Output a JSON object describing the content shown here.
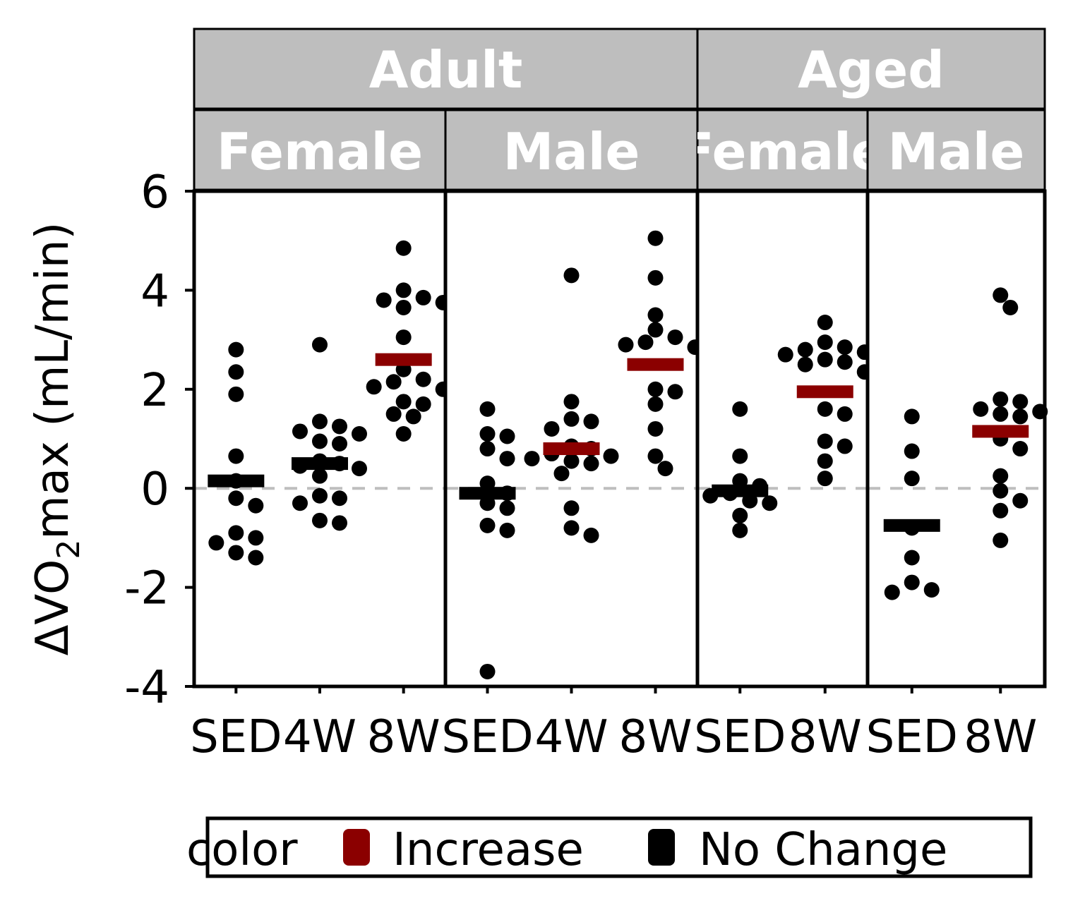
{
  "chart_data": {
    "type": "scatter",
    "ylabel": "ΔVO₂max (mL/min)",
    "ylabel_parts": {
      "pre": "ΔVO",
      "sub": "2",
      "post": "max (mL/min)"
    },
    "ylim": [
      -4,
      6
    ],
    "yticks": [
      "6",
      "4",
      "2",
      "0",
      "-2",
      "-4"
    ],
    "reference_line": 0,
    "colors": {
      "Increase": "#8b0000",
      "No Change": "#000000",
      "strip": "#bebebe",
      "refline": "#bebebe"
    },
    "age_groups": [
      "Adult",
      "Aged"
    ],
    "legend": {
      "title": "color",
      "items": [
        "Increase",
        "No Change"
      ],
      "position": "bottom"
    },
    "panels": [
      {
        "age": "Adult",
        "sex": "Female",
        "groups": [
          {
            "label": "SED",
            "mean": 0.15,
            "color": "No Change",
            "points": [
              2.8,
              2.35,
              1.9,
              0.65,
              0.15,
              -0.2,
              -0.35,
              -0.9,
              -1.0,
              -1.1,
              -1.3,
              -1.4
            ]
          },
          {
            "label": "4W",
            "mean": 0.5,
            "color": "No Change",
            "points": [
              2.9,
              1.35,
              1.25,
              1.15,
              1.1,
              0.95,
              0.9,
              0.55,
              0.5,
              0.45,
              0.4,
              0.25,
              -0.15,
              -0.2,
              -0.3,
              -0.65,
              -0.7
            ]
          },
          {
            "label": "8W",
            "mean": 2.6,
            "color": "Increase",
            "points": [
              4.85,
              4.0,
              3.85,
              3.8,
              3.75,
              3.65,
              3.05,
              2.4,
              2.2,
              2.15,
              2.05,
              2.0,
              1.75,
              1.7,
              1.5,
              1.45,
              1.1
            ]
          }
        ]
      },
      {
        "age": "Adult",
        "sex": "Male",
        "groups": [
          {
            "label": "SED",
            "mean": -0.1,
            "color": "No Change",
            "points": [
              1.6,
              1.1,
              1.05,
              0.8,
              0.6,
              0.1,
              -0.1,
              -0.3,
              -0.4,
              -0.75,
              -0.85,
              -3.7
            ]
          },
          {
            "label": "4W",
            "mean": 0.8,
            "color": "Increase",
            "points": [
              4.3,
              1.75,
              1.4,
              1.35,
              1.2,
              0.85,
              0.8,
              0.7,
              0.65,
              0.6,
              0.55,
              0.5,
              0.3,
              -0.4,
              -0.8,
              -0.95
            ]
          },
          {
            "label": "8W",
            "mean": 2.5,
            "color": "Increase",
            "points": [
              5.05,
              4.25,
              3.5,
              3.2,
              3.05,
              2.95,
              2.9,
              2.85,
              2.0,
              1.95,
              1.7,
              1.2,
              0.65,
              0.4
            ]
          }
        ]
      },
      {
        "age": "Aged",
        "sex": "Female",
        "groups": [
          {
            "label": "SED",
            "mean": -0.05,
            "color": "No Change",
            "points": [
              1.6,
              0.65,
              0.15,
              0.05,
              -0.1,
              -0.15,
              -0.25,
              -0.3,
              -0.55,
              -0.85
            ]
          },
          {
            "label": "8W",
            "mean": 1.95,
            "color": "Increase",
            "points": [
              3.35,
              2.95,
              2.85,
              2.8,
              2.75,
              2.7,
              2.6,
              2.55,
              2.5,
              2.35,
              1.6,
              1.5,
              0.95,
              0.85,
              0.55,
              0.2
            ]
          }
        ]
      },
      {
        "age": "Aged",
        "sex": "Male",
        "groups": [
          {
            "label": "SED",
            "mean": -0.75,
            "color": "No Change",
            "points": [
              1.45,
              0.75,
              0.2,
              -0.8,
              -1.4,
              -1.9,
              -2.05,
              -2.1
            ]
          },
          {
            "label": "8W",
            "mean": 1.15,
            "color": "Increase",
            "points": [
              3.9,
              3.65,
              1.8,
              1.75,
              1.6,
              1.55,
              1.5,
              1.45,
              1.0,
              0.8,
              0.25,
              -0.05,
              -0.25,
              -0.45,
              -1.05
            ]
          }
        ]
      }
    ]
  }
}
